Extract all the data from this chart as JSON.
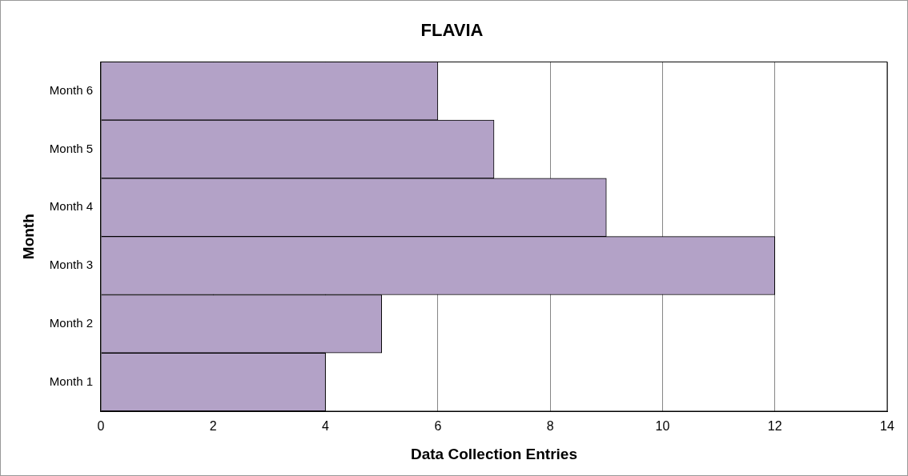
{
  "chart_data": {
    "type": "bar",
    "orientation": "horizontal",
    "title": "FLAVIA",
    "xlabel": "Data Collection Entries",
    "ylabel": "Month",
    "categories": [
      "Month 6",
      "Month 5",
      "Month 4",
      "Month 3",
      "Month 2",
      "Month 1"
    ],
    "values": [
      6,
      7,
      9,
      12,
      5,
      4
    ],
    "color": "#b3a2c7",
    "xlim": [
      0,
      14
    ],
    "xticks": [
      0,
      2,
      4,
      6,
      8,
      10,
      12,
      14
    ],
    "grid": "x",
    "legend": false
  }
}
